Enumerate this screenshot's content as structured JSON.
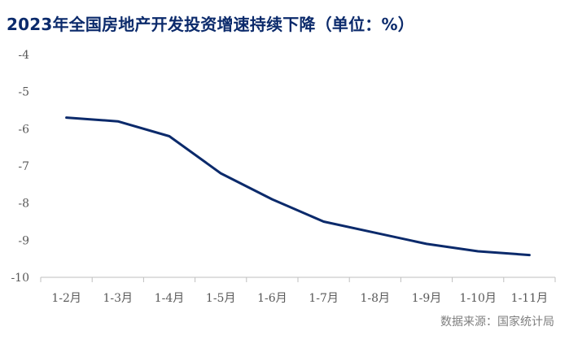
{
  "header": {
    "title": "2023年全国房地产开发投资增速持续下降（单位：%）"
  },
  "footer": {
    "source": "数据来源：国家统计局"
  },
  "chart_data": {
    "type": "line",
    "title": "2023年全国房地产开发投资增速持续下降（单位：%）",
    "xlabel": "",
    "ylabel": "",
    "categories": [
      "1-2月",
      "1-3月",
      "1-4月",
      "1-5月",
      "1-6月",
      "1-7月",
      "1-8月",
      "1-9月",
      "1-10月",
      "1-11月"
    ],
    "series": [
      {
        "values": [
          -5.7,
          -5.8,
          -6.2,
          -7.2,
          -7.9,
          -8.5,
          -8.8,
          -9.1,
          -9.3,
          -9.4
        ]
      }
    ],
    "ylim": [
      -10,
      -4
    ],
    "yticks": [
      -4,
      -5,
      -6,
      -7,
      -8,
      -9,
      -10
    ],
    "grid": false,
    "legend": "none",
    "colors": {
      "line": "#0b2a6b",
      "axis": "#bfbfbf"
    }
  }
}
